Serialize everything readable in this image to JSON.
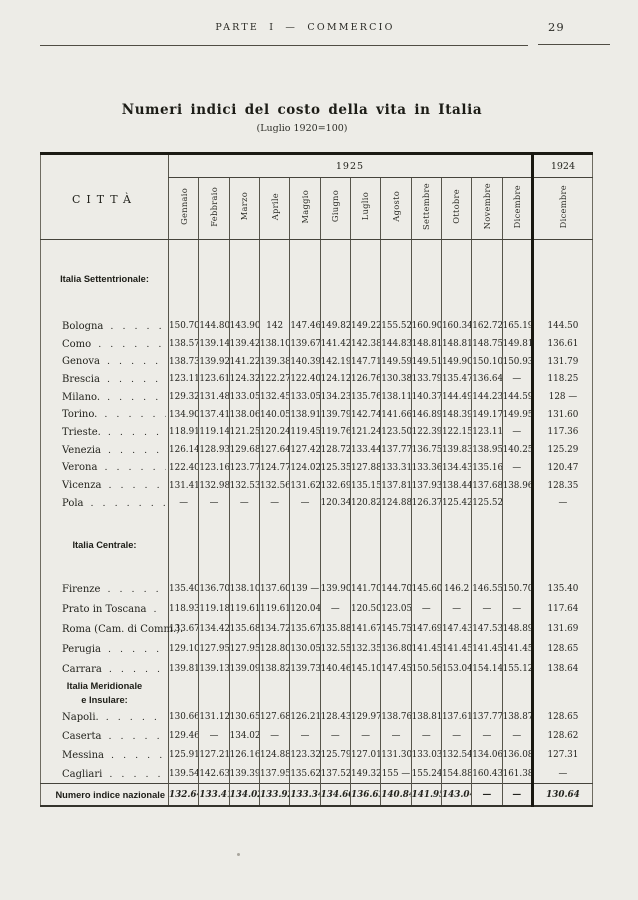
{
  "page": {
    "header": {
      "running_title": "PARTE I — COMMERCIO",
      "page_number": "29"
    },
    "title": "Numeri indici del costo della vita in Italia",
    "subtitle": "(Luglio 1920=100)"
  },
  "table": {
    "city_header": "CITTÀ",
    "year_1925": "1925",
    "year_1924": "1924",
    "months_1925": [
      "Gennaio",
      "Febbraio",
      "Marzo",
      "Aprile",
      "Maggio",
      "Giugno",
      "Luglio",
      "Agosto",
      "Settembre",
      "Ottobre",
      "Novembre",
      "Dicembre"
    ],
    "month_1924": "Dicembre",
    "rows": [
      {
        "type": "section",
        "lines": [
          "Italia Settentrionale:"
        ]
      },
      {
        "type": "city",
        "label": "Bologna",
        "cells": [
          "150.70",
          "144.80",
          "143.90",
          "142",
          "147.46",
          "149.82",
          "149.22",
          "155.52",
          "160.90",
          "160.34",
          "162.72",
          "165.19",
          "144.50"
        ]
      },
      {
        "type": "city",
        "label": "Como",
        "cells": [
          "138.57",
          "139.14",
          "139.42",
          "138.10",
          "139.67",
          "141.42",
          "142.38",
          "144.83",
          "148.81",
          "148.81",
          "148.75",
          "149.81",
          "136.61"
        ]
      },
      {
        "type": "city",
        "label": "Genova",
        "cells": [
          "138.73",
          "139.92",
          "141.22",
          "139.38",
          "140.39",
          "142.19",
          "147.71",
          "149.59",
          "149.51",
          "149.90",
          "150.10",
          "150.93",
          "131.79"
        ]
      },
      {
        "type": "city",
        "label": "Brescia",
        "cells": [
          "123.11",
          "123.61",
          "124.32",
          "122.27",
          "122.40",
          "124.12",
          "126.76",
          "130.38",
          "133.79",
          "135.47",
          "136.64",
          "—",
          "118.25"
        ]
      },
      {
        "type": "city",
        "label": "Milano.",
        "cells": [
          "129.32",
          "131.48",
          "133.05",
          "132.45",
          "133.05",
          "134.23",
          "135.76",
          "138.11",
          "140.37",
          "144.49",
          "144.23",
          "144.59",
          "128 —"
        ]
      },
      {
        "type": "city",
        "label": "Torino.",
        "cells": [
          "134.90",
          "137.41",
          "138.06",
          "140.05",
          "138.91",
          "139.79",
          "142.74",
          "141.66",
          "146.89",
          "148.39",
          "149.17",
          "149.95",
          "131.60"
        ]
      },
      {
        "type": "city",
        "label": "Trieste.",
        "cells": [
          "118.91",
          "119.14",
          "121.25",
          "120.24",
          "119.45",
          "119.76",
          "121.24",
          "123.50",
          "122.39",
          "122.15",
          "123.11",
          "—",
          "117.36"
        ]
      },
      {
        "type": "city",
        "label": "Venezia",
        "cells": [
          "126.14",
          "128.93",
          "129.68",
          "127.64",
          "127.42",
          "128.72",
          "133.44",
          "137.77",
          "136.75",
          "139.83",
          "138.95",
          "140.25",
          "125.29"
        ]
      },
      {
        "type": "city",
        "label": "Verona",
        "cells": [
          "122.40",
          "123.16",
          "123.77",
          "124.77",
          "124.02",
          "125.35",
          "127.88",
          "133.31",
          "133.36",
          "134.43",
          "135.16",
          "—",
          "120.47"
        ]
      },
      {
        "type": "city",
        "label": "Vicenza",
        "cells": [
          "131.41",
          "132.98",
          "132.53",
          "132.56",
          "131.62",
          "132.69",
          "135.15",
          "137.81",
          "137.93",
          "138.44",
          "137.68",
          "138.96",
          "128.35"
        ]
      },
      {
        "type": "city",
        "label": "Pola",
        "cells": [
          "—",
          "—",
          "—",
          "—",
          "—",
          "120.34",
          "120.82",
          "124.88",
          "126.37",
          "125.42",
          "125.52",
          "",
          "—"
        ]
      },
      {
        "type": "section",
        "lines": [
          "Italia Centrale:"
        ]
      },
      {
        "type": "city",
        "label": "Firenze",
        "cells": [
          "135.40",
          "136.70",
          "138.10",
          "137.60",
          "139 —",
          "139.90",
          "141.70",
          "144.70",
          "145.60",
          "146.2",
          "146.55",
          "150.70",
          "135.40"
        ]
      },
      {
        "type": "city",
        "label": "Prato in Toscana",
        "cells": [
          "118.93",
          "119.18",
          "119.61",
          "119.61",
          "120.04",
          "—",
          "120.50",
          "123.05",
          "—",
          "—",
          "—",
          "—",
          "117.64"
        ]
      },
      {
        "type": "city",
        "label": "Roma (Cam. di Comm.).",
        "cells": [
          "133.67",
          "134.42",
          "135.68",
          "134.72",
          "135.67",
          "135.88",
          "141.67",
          "145.75",
          "147.69",
          "147.43",
          "147.53",
          "148.89",
          "131.69"
        ]
      },
      {
        "type": "city",
        "label": "Perugia",
        "cells": [
          "129.10",
          "127.95",
          "127.95",
          "128.80",
          "130.05",
          "132.55",
          "132.35",
          "136.80",
          "141.45",
          "141.45",
          "141.45",
          "141.45",
          "128.65"
        ]
      },
      {
        "type": "city",
        "label": "Carrara",
        "cells": [
          "139.81",
          "139.13",
          "139.09",
          "138.82",
          "139.73",
          "140.46",
          "145.10",
          "147.45",
          "150.56",
          "153.04",
          "154.14",
          "155.12",
          "138.64"
        ]
      },
      {
        "type": "section",
        "lines": [
          "Italia Meridionale",
          "e Insulare:"
        ]
      },
      {
        "type": "city",
        "label": "Napoli.",
        "cells": [
          "130.66",
          "131.12",
          "130.65",
          "127.68",
          "126.21",
          "128.43",
          "129.97",
          "138.76",
          "138.81",
          "137.61",
          "137.77",
          "138.87",
          "128.65"
        ]
      },
      {
        "type": "city",
        "label": "Caserta",
        "cells": [
          "129.46",
          "—",
          "134.02",
          "—",
          "—",
          "—",
          "—",
          "—",
          "—",
          "—",
          "—",
          "—",
          "128.62"
        ]
      },
      {
        "type": "city",
        "label": "Messina",
        "cells": [
          "125.91",
          "127.21",
          "126.16",
          "124.88",
          "123.32",
          "125.79",
          "127.01",
          "131.30",
          "133.03",
          "132.54",
          "134.06",
          "136.08",
          "127.31"
        ]
      },
      {
        "type": "city",
        "label": "Cagliari",
        "cells": [
          "139.54",
          "142.63",
          "139.39",
          "137.95",
          "135.62",
          "137.52",
          "149.32",
          "155 —",
          "155.24",
          "154.88",
          "160.43",
          "161.38",
          "—"
        ]
      },
      {
        "type": "national",
        "label": "Numero indice nazionale",
        "cells": [
          "132.64",
          "133.41",
          "134.02",
          "133.92",
          "133.34",
          "134.66",
          "136.63",
          "140.84",
          "141.95",
          "143.04",
          "—",
          "—",
          "130.64"
        ]
      }
    ]
  }
}
